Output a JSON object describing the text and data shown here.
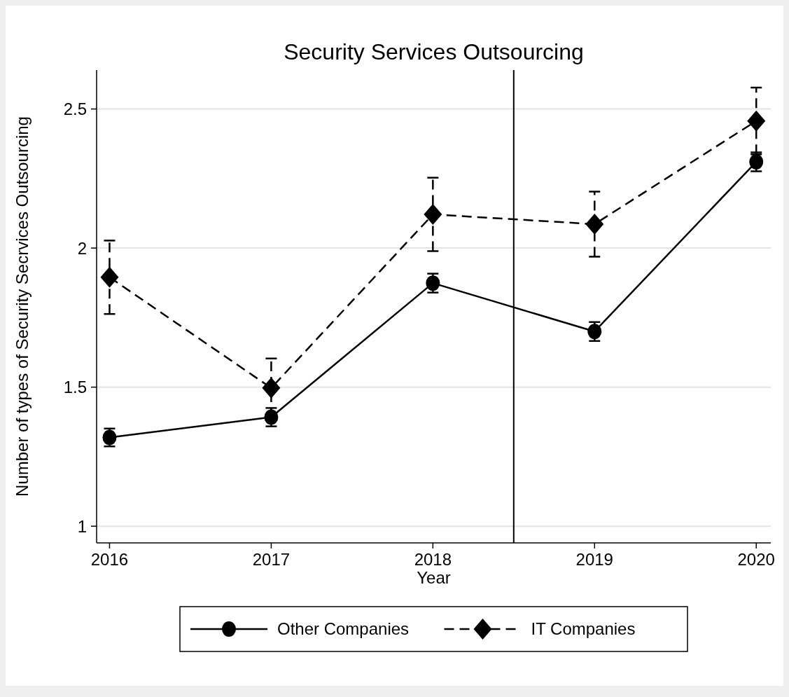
{
  "chart_data": {
    "type": "line",
    "title": "Security Services Outsourcing",
    "xlabel": "Year",
    "ylabel": "Number of types of Security Secrvices Outsourcing",
    "x": [
      2016,
      2017,
      2018,
      2019,
      2020
    ],
    "xlim": [
      2015.92,
      2020.09
    ],
    "xticks": [
      2016,
      2017,
      2018,
      2019,
      2020
    ],
    "ylim": [
      0.94,
      2.64
    ],
    "yticks": [
      1,
      1.5,
      2,
      2.5
    ],
    "series": [
      {
        "name": "Other Companies",
        "color": "#000000",
        "marker": "circle",
        "line_style": "solid",
        "values": [
          1.319,
          1.392,
          1.874,
          1.7,
          2.31
        ],
        "errors": [
          0.032,
          0.033,
          0.034,
          0.034,
          0.034
        ]
      },
      {
        "name": "IT Companies",
        "color": "#000000",
        "marker": "diamond",
        "line_style": "dashed",
        "values": [
          1.895,
          1.497,
          2.121,
          2.086,
          2.457
        ],
        "errors": [
          0.132,
          0.106,
          0.132,
          0.117,
          0.12
        ]
      }
    ],
    "ref_lines": [
      {
        "axis": "x",
        "value": 2018.5,
        "color": "#000000"
      }
    ],
    "grid": "y",
    "legend": "bottom"
  }
}
